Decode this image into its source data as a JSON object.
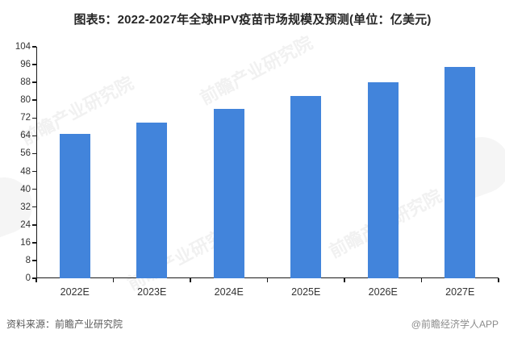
{
  "title": "图表5：2022-2027年全球HPV疫苗市场规模及预测(单位：亿美元)",
  "chart_data": {
    "type": "bar",
    "categories": [
      "2022E",
      "2023E",
      "2024E",
      "2025E",
      "2026E",
      "2027E"
    ],
    "values": [
      65,
      70,
      76,
      82,
      88,
      95
    ],
    "title": "图表5：2022-2027年全球HPV疫苗市场规模及预测(单位：亿美元)",
    "xlabel": "",
    "ylabel": "",
    "ylim": [
      0,
      104
    ],
    "ytick_step": 8,
    "bar_color": "#4284db",
    "grid": false,
    "legend_position": "none"
  },
  "footer": {
    "source": "资料来源：前瞻产业研究院",
    "brand": "@前瞻经济学人APP"
  },
  "watermark": {
    "text": "前瞻产业研究院"
  }
}
